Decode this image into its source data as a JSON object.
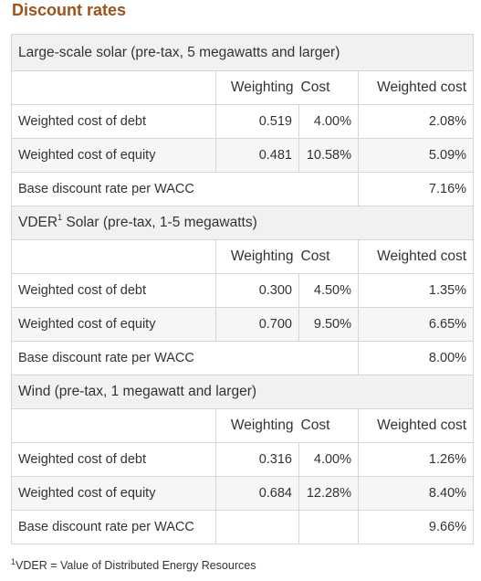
{
  "title": "Discount rates",
  "sections": [
    {
      "name": "Large-scale solar (pre-tax, 5 megawatts and larger)",
      "name_superscript": "",
      "name_rest": "",
      "headers": {
        "weighting": "Weighting",
        "cost": "Cost",
        "weighted_cost": "Weighted cost"
      },
      "rows": [
        {
          "label": "Weighted cost of debt",
          "weighting": "0.519",
          "cost": "4.00%",
          "weighted_cost": "2.08%"
        },
        {
          "label": "Weighted cost of equity",
          "weighting": "0.481",
          "cost": "10.58%",
          "weighted_cost": "5.09%"
        },
        {
          "label": "Base discount rate per WACC",
          "weighting": "",
          "cost": "",
          "weighted_cost": "7.16%"
        }
      ]
    },
    {
      "name": "VDER",
      "name_superscript": "1",
      "name_rest": " Solar (pre-tax, 1-5 megawatts)",
      "headers": {
        "weighting": "Weighting",
        "cost": "Cost",
        "weighted_cost": "Weighted cost"
      },
      "rows": [
        {
          "label": "Weighted cost of debt",
          "weighting": "0.300",
          "cost": "4.50%",
          "weighted_cost": "1.35%"
        },
        {
          "label": "Weighted cost of equity",
          "weighting": "0.700",
          "cost": "9.50%",
          "weighted_cost": "6.65%"
        },
        {
          "label": "Base discount rate per WACC",
          "weighting": "",
          "cost": "",
          "weighted_cost": "8.00%"
        }
      ]
    },
    {
      "name": "Wind (pre-tax, 1 megawatt and larger)",
      "name_superscript": "",
      "name_rest": "",
      "headers": {
        "weighting": "Weighting",
        "cost": "Cost",
        "weighted_cost": "Weighted cost"
      },
      "rows": [
        {
          "label": "Weighted cost of debt",
          "weighting": "0.316",
          "cost": "4.00%",
          "weighted_cost": "1.26%"
        },
        {
          "label": "Weighted cost of equity",
          "weighting": "0.684",
          "cost": "12.28%",
          "weighted_cost": "8.40%"
        },
        {
          "label": "Base discount rate per WACC",
          "weighting": "",
          "cost": "",
          "weighted_cost": "9.66%"
        }
      ]
    }
  ],
  "footnote": {
    "mark": "1",
    "text": "VDER = Value of Distributed Energy Resources"
  }
}
